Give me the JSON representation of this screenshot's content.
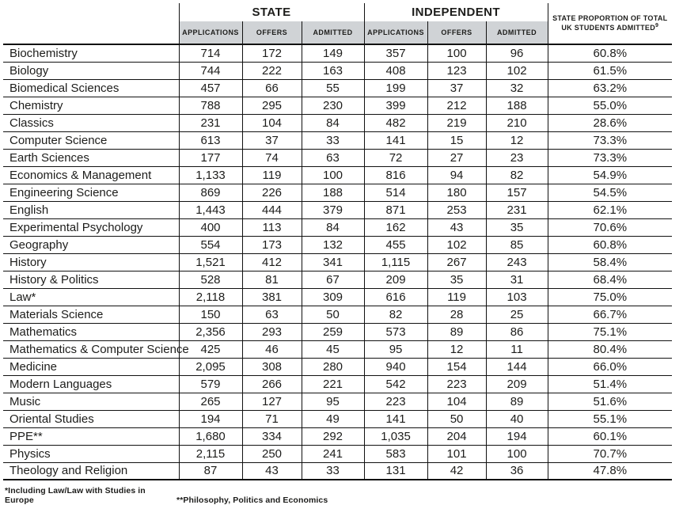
{
  "table": {
    "group_headers": [
      {
        "label": "STATE"
      },
      {
        "label": "INDEPENDENT"
      }
    ],
    "sub_headers": [
      "APPLICATIONS",
      "OFFERS",
      "ADMITTED",
      "APPLICATIONS",
      "OFFERS",
      "ADMITTED"
    ],
    "proportion_header": {
      "line1": "STATE PROPORTION OF TOTAL",
      "line2": "UK STUDENTS ADMITTED",
      "superscript": "9"
    },
    "rows": [
      {
        "subject": "Biochemistry",
        "values": [
          "714",
          "172",
          "149",
          "357",
          "100",
          "96",
          "60.8%"
        ]
      },
      {
        "subject": "Biology",
        "values": [
          "744",
          "222",
          "163",
          "408",
          "123",
          "102",
          "61.5%"
        ]
      },
      {
        "subject": "Biomedical Sciences",
        "values": [
          "457",
          "66",
          "55",
          "199",
          "37",
          "32",
          "63.2%"
        ]
      },
      {
        "subject": "Chemistry",
        "values": [
          "788",
          "295",
          "230",
          "399",
          "212",
          "188",
          "55.0%"
        ]
      },
      {
        "subject": "Classics",
        "values": [
          "231",
          "104",
          "84",
          "482",
          "219",
          "210",
          "28.6%"
        ]
      },
      {
        "subject": "Computer Science",
        "values": [
          "613",
          "37",
          "33",
          "141",
          "15",
          "12",
          "73.3%"
        ]
      },
      {
        "subject": "Earth Sciences",
        "values": [
          "177",
          "74",
          "63",
          "72",
          "27",
          "23",
          "73.3%"
        ]
      },
      {
        "subject": "Economics & Management",
        "values": [
          "1,133",
          "119",
          "100",
          "816",
          "94",
          "82",
          "54.9%"
        ]
      },
      {
        "subject": "Engineering Science",
        "values": [
          "869",
          "226",
          "188",
          "514",
          "180",
          "157",
          "54.5%"
        ]
      },
      {
        "subject": "English",
        "values": [
          "1,443",
          "444",
          "379",
          "871",
          "253",
          "231",
          "62.1%"
        ]
      },
      {
        "subject": "Experimental Psychology",
        "values": [
          "400",
          "113",
          "84",
          "162",
          "43",
          "35",
          "70.6%"
        ]
      },
      {
        "subject": "Geography",
        "values": [
          "554",
          "173",
          "132",
          "455",
          "102",
          "85",
          "60.8%"
        ]
      },
      {
        "subject": "History",
        "values": [
          "1,521",
          "412",
          "341",
          "1,115",
          "267",
          "243",
          "58.4%"
        ]
      },
      {
        "subject": "History & Politics",
        "values": [
          "528",
          "81",
          "67",
          "209",
          "35",
          "31",
          "68.4%"
        ]
      },
      {
        "subject": "Law*",
        "values": [
          "2,118",
          "381",
          "309",
          "616",
          "119",
          "103",
          "75.0%"
        ]
      },
      {
        "subject": "Materials Science",
        "values": [
          "150",
          "63",
          "50",
          "82",
          "28",
          "25",
          "66.7%"
        ]
      },
      {
        "subject": "Mathematics",
        "values": [
          "2,356",
          "293",
          "259",
          "573",
          "89",
          "86",
          "75.1%"
        ]
      },
      {
        "subject": "Mathematics & Computer Science",
        "values": [
          "425",
          "46",
          "45",
          "95",
          "12",
          "11",
          "80.4%"
        ]
      },
      {
        "subject": "Medicine",
        "values": [
          "2,095",
          "308",
          "280",
          "940",
          "154",
          "144",
          "66.0%"
        ]
      },
      {
        "subject": "Modern Languages",
        "values": [
          "579",
          "266",
          "221",
          "542",
          "223",
          "209",
          "51.4%"
        ]
      },
      {
        "subject": "Music",
        "values": [
          "265",
          "127",
          "95",
          "223",
          "104",
          "89",
          "51.6%"
        ]
      },
      {
        "subject": "Oriental Studies",
        "values": [
          "194",
          "71",
          "49",
          "141",
          "50",
          "40",
          "55.1%"
        ]
      },
      {
        "subject": "PPE**",
        "values": [
          "1,680",
          "334",
          "292",
          "1,035",
          "204",
          "194",
          "60.1%"
        ]
      },
      {
        "subject": "Physics",
        "values": [
          "2,115",
          "250",
          "241",
          "583",
          "101",
          "100",
          "70.7%"
        ]
      },
      {
        "subject": "Theology and Religion",
        "values": [
          "87",
          "43",
          "33",
          "131",
          "42",
          "36",
          "47.8%"
        ]
      }
    ]
  },
  "footnotes": [
    "*Including Law/Law with Studies in Europe",
    "**Philosophy, Politics and Economics"
  ],
  "colors": {
    "header_gray": "#d0d3d6",
    "border_black": "#111111",
    "text": "#1d1d1b"
  }
}
